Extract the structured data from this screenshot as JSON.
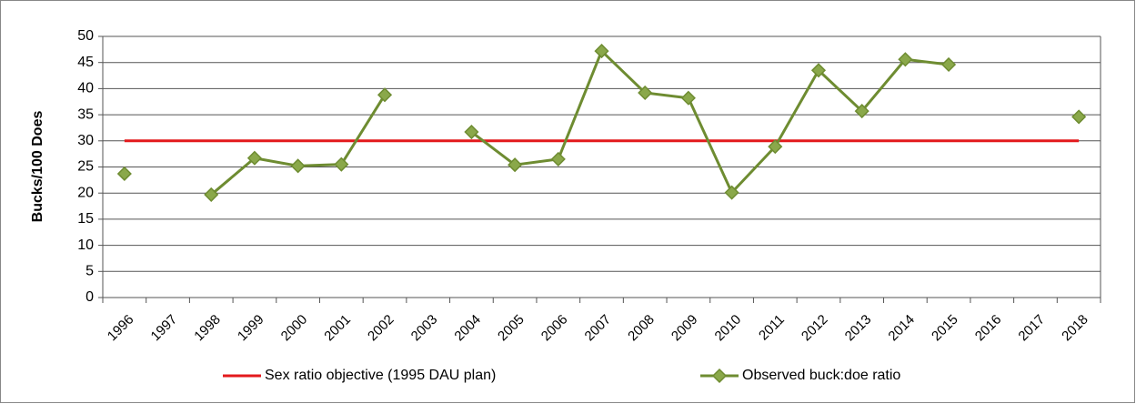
{
  "chart_data": {
    "type": "line",
    "y_label": "Bucks/100 Does",
    "categories": [
      "1996",
      "1997",
      "1998",
      "1999",
      "2000",
      "2001",
      "2002",
      "2003",
      "2004",
      "2005",
      "2006",
      "2007",
      "2008",
      "2009",
      "2010",
      "2011",
      "2012",
      "2013",
      "2014",
      "2015",
      "2016",
      "2017",
      "2018"
    ],
    "series": [
      {
        "name": "Sex ratio objective (1995 DAU plan)",
        "color": "#e3191c",
        "marker": "none",
        "values": [
          30,
          30,
          30,
          30,
          30,
          30,
          30,
          30,
          30,
          30,
          30,
          30,
          30,
          30,
          30,
          30,
          30,
          30,
          30,
          30,
          30,
          30,
          30
        ]
      },
      {
        "name": "Observed buck:doe ratio",
        "color": "#6e8c31",
        "marker": "diamond",
        "values": [
          23.7,
          null,
          19.7,
          26.7,
          25.2,
          25.5,
          38.8,
          null,
          31.7,
          25.4,
          26.5,
          47.2,
          39.2,
          38.2,
          20.1,
          28.9,
          43.5,
          35.7,
          45.6,
          44.6,
          null,
          null,
          34.6
        ]
      }
    ],
    "ylim": [
      0,
      50
    ],
    "yticks": [
      0,
      5,
      10,
      15,
      20,
      25,
      30,
      35,
      40,
      45,
      50
    ],
    "grid": true,
    "legend": "bottom"
  }
}
